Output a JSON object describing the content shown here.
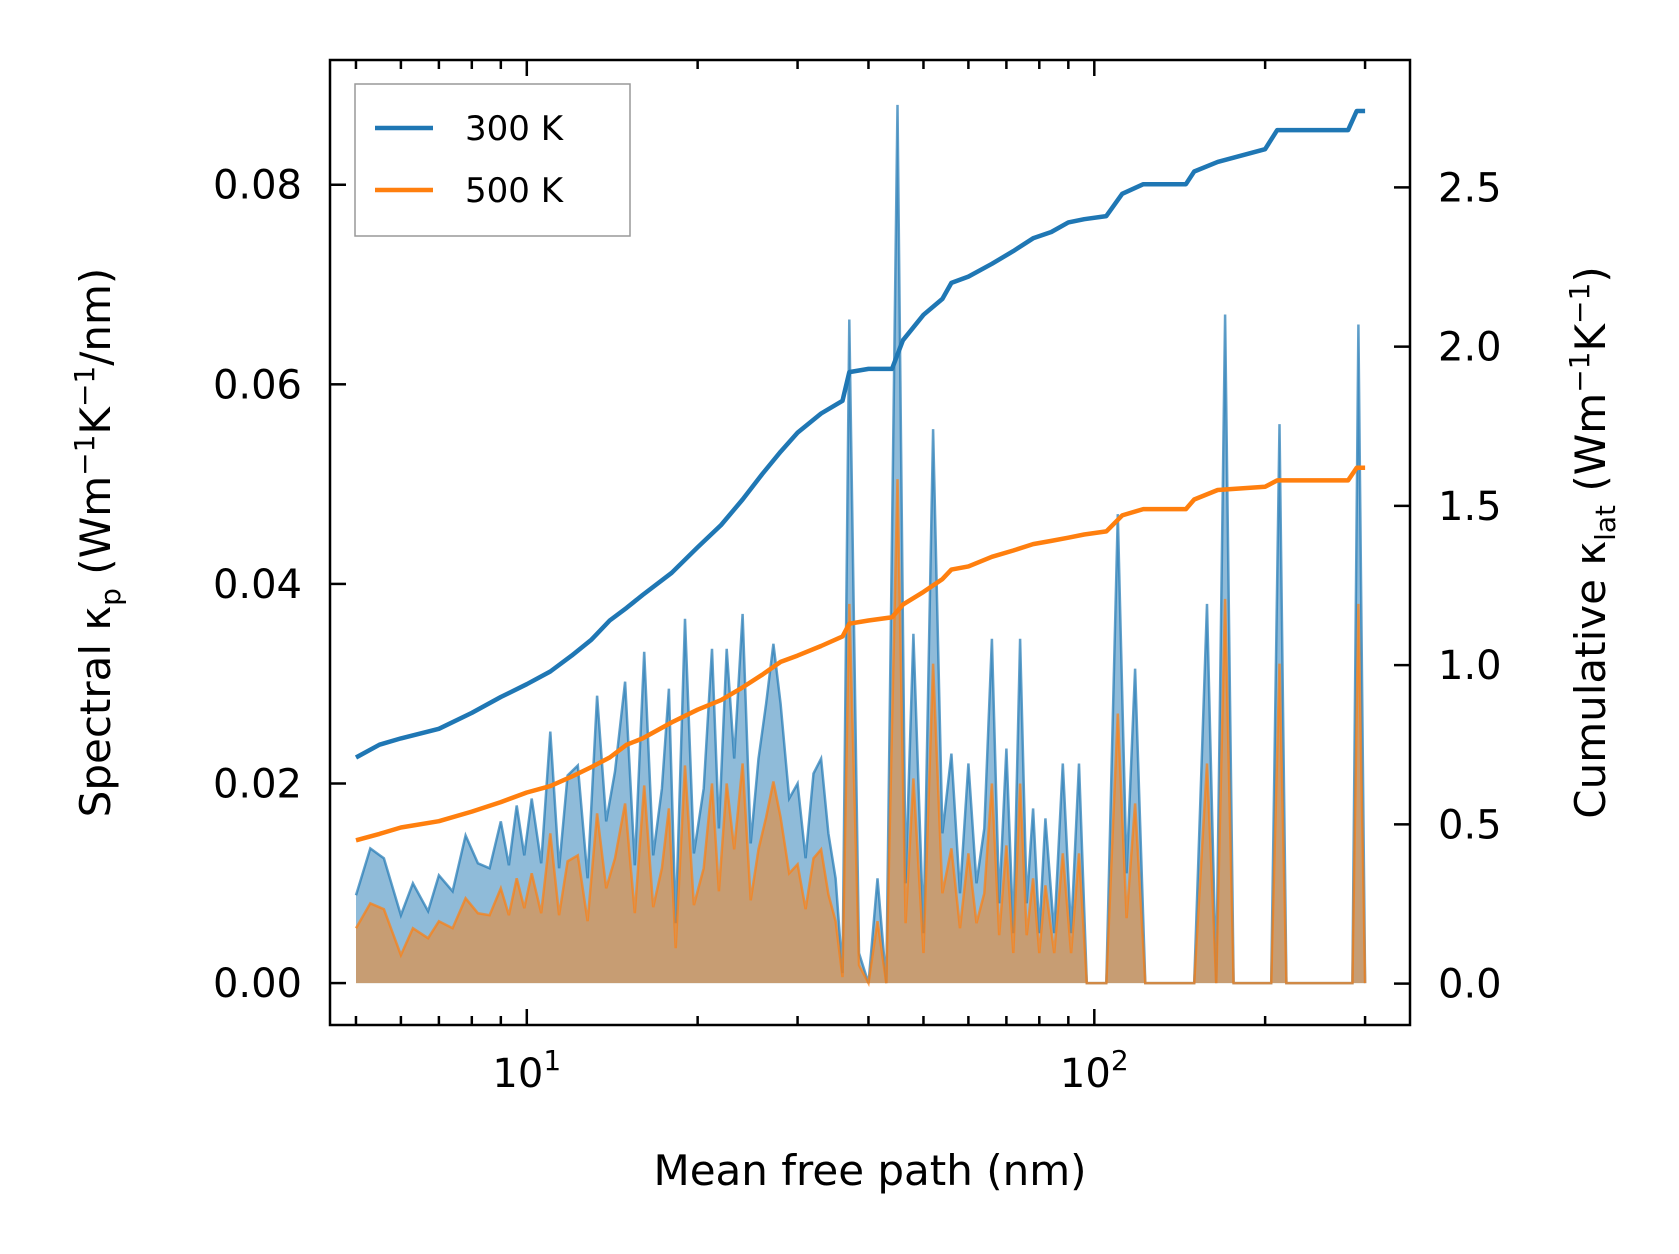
{
  "chart_data": {
    "type": "line",
    "xlabel": "Mean free path (nm)",
    "xscale": "log",
    "xlim": [
      4.5,
      360
    ],
    "xticks": [
      {
        "value": 10,
        "base": "10",
        "exp": "1"
      },
      {
        "value": 100,
        "base": "10",
        "exp": "2"
      }
    ],
    "y_left": {
      "label": {
        "main": "Spectral κ",
        "sub": "p",
        "units_pre": " (Wm",
        "sup1": "−1",
        "mid": "K",
        "sup2": "−1",
        "units_post": "/nm)"
      },
      "ylim": [
        -0.0042,
        0.0925
      ],
      "ticks": [
        {
          "value": 0.0,
          "label": "0.00"
        },
        {
          "value": 0.02,
          "label": "0.02"
        },
        {
          "value": 0.04,
          "label": "0.04"
        },
        {
          "value": 0.06,
          "label": "0.06"
        },
        {
          "value": 0.08,
          "label": "0.08"
        }
      ]
    },
    "y_right": {
      "label": {
        "main": "Cumulative κ",
        "sub": "lat",
        "units_pre": " (Wm",
        "sup1": "−1",
        "mid": "K",
        "sup2": "−1",
        "units_post": ")"
      },
      "ylim": [
        -0.13,
        2.9
      ],
      "ticks": [
        {
          "value": 0.0,
          "label": "0.0"
        },
        {
          "value": 0.5,
          "label": "0.5"
        },
        {
          "value": 1.0,
          "label": "1.0"
        },
        {
          "value": 1.5,
          "label": "1.5"
        },
        {
          "value": 2.0,
          "label": "2.0"
        },
        {
          "value": 2.5,
          "label": "2.5"
        }
      ]
    },
    "legend": {
      "position": "top-left"
    },
    "series": [
      {
        "name": "300 K",
        "color": "#1f77b4",
        "cumulative": [
          [
            5.0,
            0.71
          ],
          [
            5.5,
            0.75
          ],
          [
            6.0,
            0.77
          ],
          [
            7.0,
            0.8
          ],
          [
            8.0,
            0.85
          ],
          [
            9.0,
            0.9
          ],
          [
            10.0,
            0.94
          ],
          [
            11.0,
            0.98
          ],
          [
            12.0,
            1.03
          ],
          [
            13.0,
            1.08
          ],
          [
            14.0,
            1.14
          ],
          [
            15.0,
            1.18
          ],
          [
            16.0,
            1.22
          ],
          [
            18.0,
            1.29
          ],
          [
            20.0,
            1.37
          ],
          [
            22.0,
            1.44
          ],
          [
            24.0,
            1.52
          ],
          [
            26.0,
            1.6
          ],
          [
            28.0,
            1.67
          ],
          [
            30.0,
            1.73
          ],
          [
            33.0,
            1.79
          ],
          [
            36.0,
            1.83
          ],
          [
            37.0,
            1.92
          ],
          [
            40.0,
            1.93
          ],
          [
            44.0,
            1.93
          ],
          [
            46.0,
            2.02
          ],
          [
            50.0,
            2.1
          ],
          [
            54.0,
            2.15
          ],
          [
            56.0,
            2.2
          ],
          [
            60.0,
            2.22
          ],
          [
            66.0,
            2.26
          ],
          [
            72.0,
            2.3
          ],
          [
            78.0,
            2.34
          ],
          [
            84.0,
            2.36
          ],
          [
            90.0,
            2.39
          ],
          [
            96.0,
            2.4
          ],
          [
            105.0,
            2.41
          ],
          [
            112.0,
            2.48
          ],
          [
            122.0,
            2.51
          ],
          [
            145.0,
            2.51
          ],
          [
            150.0,
            2.55
          ],
          [
            165.0,
            2.58
          ],
          [
            200.0,
            2.62
          ],
          [
            210.0,
            2.68
          ],
          [
            280.0,
            2.68
          ],
          [
            290.0,
            2.74
          ],
          [
            300.0,
            2.74
          ]
        ],
        "spectral": [
          [
            5.0,
            0.0088
          ],
          [
            5.3,
            0.0135
          ],
          [
            5.6,
            0.0125
          ],
          [
            6.0,
            0.0068
          ],
          [
            6.3,
            0.01
          ],
          [
            6.7,
            0.0072
          ],
          [
            7.0,
            0.0108
          ],
          [
            7.4,
            0.0092
          ],
          [
            7.8,
            0.0148
          ],
          [
            8.2,
            0.012
          ],
          [
            8.6,
            0.0115
          ],
          [
            9.0,
            0.0162
          ],
          [
            9.3,
            0.0118
          ],
          [
            9.6,
            0.0178
          ],
          [
            9.9,
            0.0128
          ],
          [
            10.2,
            0.0185
          ],
          [
            10.6,
            0.012
          ],
          [
            11.0,
            0.0252
          ],
          [
            11.4,
            0.0115
          ],
          [
            11.8,
            0.0208
          ],
          [
            12.3,
            0.0218
          ],
          [
            12.8,
            0.0105
          ],
          [
            13.3,
            0.0288
          ],
          [
            13.8,
            0.0162
          ],
          [
            14.3,
            0.0212
          ],
          [
            14.9,
            0.0302
          ],
          [
            15.5,
            0.0118
          ],
          [
            16.1,
            0.0332
          ],
          [
            16.7,
            0.0128
          ],
          [
            17.3,
            0.0195
          ],
          [
            17.8,
            0.0295
          ],
          [
            18.3,
            0.006
          ],
          [
            19.0,
            0.0365
          ],
          [
            19.7,
            0.013
          ],
          [
            20.5,
            0.0195
          ],
          [
            21.2,
            0.0335
          ],
          [
            21.8,
            0.0155
          ],
          [
            22.5,
            0.0335
          ],
          [
            23.2,
            0.0225
          ],
          [
            24.0,
            0.037
          ],
          [
            24.8,
            0.014
          ],
          [
            25.6,
            0.0225
          ],
          [
            26.4,
            0.028
          ],
          [
            27.2,
            0.034
          ],
          [
            28.0,
            0.028
          ],
          [
            29.0,
            0.0185
          ],
          [
            30.0,
            0.02
          ],
          [
            31.0,
            0.0125
          ],
          [
            32.0,
            0.021
          ],
          [
            33.0,
            0.0225
          ],
          [
            34.0,
            0.015
          ],
          [
            35.0,
            0.0105
          ],
          [
            36.0,
            0.001
          ],
          [
            37.0,
            0.0665
          ],
          [
            38.5,
            0.003
          ],
          [
            40.0,
            0.0
          ],
          [
            41.5,
            0.0105
          ],
          [
            43.0,
            0.0
          ],
          [
            45.0,
            0.088
          ],
          [
            46.5,
            0.01
          ],
          [
            48.0,
            0.035
          ],
          [
            50.0,
            0.005
          ],
          [
            52.0,
            0.0555
          ],
          [
            54.0,
            0.015
          ],
          [
            56.0,
            0.023
          ],
          [
            58.0,
            0.009
          ],
          [
            60.0,
            0.022
          ],
          [
            62.0,
            0.01
          ],
          [
            64.0,
            0.0155
          ],
          [
            66.0,
            0.0345
          ],
          [
            68.0,
            0.008
          ],
          [
            70.0,
            0.0235
          ],
          [
            72.0,
            0.005
          ],
          [
            74.0,
            0.0345
          ],
          [
            76.0,
            0.008
          ],
          [
            78.0,
            0.0175
          ],
          [
            80.0,
            0.005
          ],
          [
            82.0,
            0.0165
          ],
          [
            85.0,
            0.005
          ],
          [
            88.0,
            0.022
          ],
          [
            91.0,
            0.005
          ],
          [
            94.0,
            0.022
          ],
          [
            97.0,
            0.0
          ],
          [
            105.0,
            0.0
          ],
          [
            110.0,
            0.047
          ],
          [
            114.0,
            0.011
          ],
          [
            118.0,
            0.0315
          ],
          [
            123.0,
            0.0
          ],
          [
            150.0,
            0.0
          ],
          [
            158.0,
            0.038
          ],
          [
            164.0,
            0.0
          ],
          [
            170.0,
            0.067
          ],
          [
            176.0,
            0.0
          ],
          [
            205.0,
            0.0
          ],
          [
            212.0,
            0.056
          ],
          [
            218.0,
            0.0
          ],
          [
            285.0,
            0.0
          ],
          [
            292.0,
            0.066
          ],
          [
            300.0,
            0.0
          ]
        ]
      },
      {
        "name": "500 K",
        "color": "#ff7f0e",
        "cumulative": [
          [
            5.0,
            0.45
          ],
          [
            5.5,
            0.47
          ],
          [
            6.0,
            0.49
          ],
          [
            7.0,
            0.51
          ],
          [
            8.0,
            0.54
          ],
          [
            9.0,
            0.57
          ],
          [
            10.0,
            0.6
          ],
          [
            11.0,
            0.62
          ],
          [
            12.0,
            0.65
          ],
          [
            13.0,
            0.68
          ],
          [
            14.0,
            0.71
          ],
          [
            15.0,
            0.75
          ],
          [
            16.0,
            0.77
          ],
          [
            18.0,
            0.82
          ],
          [
            20.0,
            0.86
          ],
          [
            22.0,
            0.89
          ],
          [
            24.0,
            0.93
          ],
          [
            26.0,
            0.97
          ],
          [
            28.0,
            1.01
          ],
          [
            30.0,
            1.03
          ],
          [
            33.0,
            1.06
          ],
          [
            36.0,
            1.09
          ],
          [
            37.0,
            1.13
          ],
          [
            40.0,
            1.14
          ],
          [
            44.0,
            1.15
          ],
          [
            46.0,
            1.19
          ],
          [
            50.0,
            1.23
          ],
          [
            54.0,
            1.27
          ],
          [
            56.0,
            1.3
          ],
          [
            60.0,
            1.31
          ],
          [
            66.0,
            1.34
          ],
          [
            72.0,
            1.36
          ],
          [
            78.0,
            1.38
          ],
          [
            84.0,
            1.39
          ],
          [
            90.0,
            1.4
          ],
          [
            96.0,
            1.41
          ],
          [
            105.0,
            1.42
          ],
          [
            112.0,
            1.47
          ],
          [
            122.0,
            1.49
          ],
          [
            145.0,
            1.49
          ],
          [
            150.0,
            1.52
          ],
          [
            165.0,
            1.55
          ],
          [
            200.0,
            1.56
          ],
          [
            210.0,
            1.58
          ],
          [
            280.0,
            1.58
          ],
          [
            290.0,
            1.62
          ],
          [
            300.0,
            1.62
          ]
        ],
        "spectral": [
          [
            5.0,
            0.0055
          ],
          [
            5.3,
            0.008
          ],
          [
            5.6,
            0.0074
          ],
          [
            6.0,
            0.0028
          ],
          [
            6.3,
            0.0055
          ],
          [
            6.7,
            0.0045
          ],
          [
            7.0,
            0.0062
          ],
          [
            7.4,
            0.0055
          ],
          [
            7.8,
            0.0085
          ],
          [
            8.2,
            0.007
          ],
          [
            8.6,
            0.0068
          ],
          [
            9.0,
            0.0095
          ],
          [
            9.3,
            0.0068
          ],
          [
            9.6,
            0.0105
          ],
          [
            9.9,
            0.0075
          ],
          [
            10.2,
            0.011
          ],
          [
            10.6,
            0.007
          ],
          [
            11.0,
            0.015
          ],
          [
            11.4,
            0.0068
          ],
          [
            11.8,
            0.0122
          ],
          [
            12.3,
            0.0128
          ],
          [
            12.8,
            0.0062
          ],
          [
            13.3,
            0.017
          ],
          [
            13.8,
            0.0095
          ],
          [
            14.3,
            0.0125
          ],
          [
            14.9,
            0.018
          ],
          [
            15.5,
            0.007
          ],
          [
            16.1,
            0.0198
          ],
          [
            16.7,
            0.0076
          ],
          [
            17.3,
            0.0115
          ],
          [
            17.8,
            0.0175
          ],
          [
            18.3,
            0.0035
          ],
          [
            19.0,
            0.0218
          ],
          [
            19.7,
            0.0078
          ],
          [
            20.5,
            0.0115
          ],
          [
            21.2,
            0.02
          ],
          [
            21.8,
            0.0092
          ],
          [
            22.5,
            0.02
          ],
          [
            23.2,
            0.0134
          ],
          [
            24.0,
            0.022
          ],
          [
            24.8,
            0.0083
          ],
          [
            25.6,
            0.0134
          ],
          [
            26.4,
            0.0166
          ],
          [
            27.2,
            0.0202
          ],
          [
            28.0,
            0.0166
          ],
          [
            29.0,
            0.011
          ],
          [
            30.0,
            0.0119
          ],
          [
            31.0,
            0.0074
          ],
          [
            32.0,
            0.0125
          ],
          [
            33.0,
            0.0134
          ],
          [
            34.0,
            0.0089
          ],
          [
            35.0,
            0.0062
          ],
          [
            36.0,
            0.0006
          ],
          [
            37.0,
            0.038
          ],
          [
            38.5,
            0.0018
          ],
          [
            40.0,
            0.0
          ],
          [
            41.5,
            0.0062
          ],
          [
            43.0,
            0.0
          ],
          [
            45.0,
            0.0505
          ],
          [
            46.5,
            0.006
          ],
          [
            48.0,
            0.0205
          ],
          [
            50.0,
            0.003
          ],
          [
            52.0,
            0.032
          ],
          [
            54.0,
            0.009
          ],
          [
            56.0,
            0.0135
          ],
          [
            58.0,
            0.0055
          ],
          [
            60.0,
            0.013
          ],
          [
            62.0,
            0.006
          ],
          [
            64.0,
            0.009
          ],
          [
            66.0,
            0.02
          ],
          [
            68.0,
            0.0048
          ],
          [
            70.0,
            0.0138
          ],
          [
            72.0,
            0.003
          ],
          [
            74.0,
            0.02
          ],
          [
            76.0,
            0.0048
          ],
          [
            78.0,
            0.0105
          ],
          [
            80.0,
            0.003
          ],
          [
            82.0,
            0.0098
          ],
          [
            85.0,
            0.003
          ],
          [
            88.0,
            0.013
          ],
          [
            91.0,
            0.003
          ],
          [
            94.0,
            0.013
          ],
          [
            97.0,
            0.0
          ],
          [
            105.0,
            0.0
          ],
          [
            110.0,
            0.027
          ],
          [
            114.0,
            0.0065
          ],
          [
            118.0,
            0.018
          ],
          [
            123.0,
            0.0
          ],
          [
            150.0,
            0.0
          ],
          [
            158.0,
            0.022
          ],
          [
            164.0,
            0.0
          ],
          [
            170.0,
            0.0385
          ],
          [
            176.0,
            0.0
          ],
          [
            205.0,
            0.0
          ],
          [
            212.0,
            0.032
          ],
          [
            218.0,
            0.0
          ],
          [
            285.0,
            0.0
          ],
          [
            292.0,
            0.038
          ],
          [
            300.0,
            0.0
          ]
        ]
      }
    ]
  }
}
